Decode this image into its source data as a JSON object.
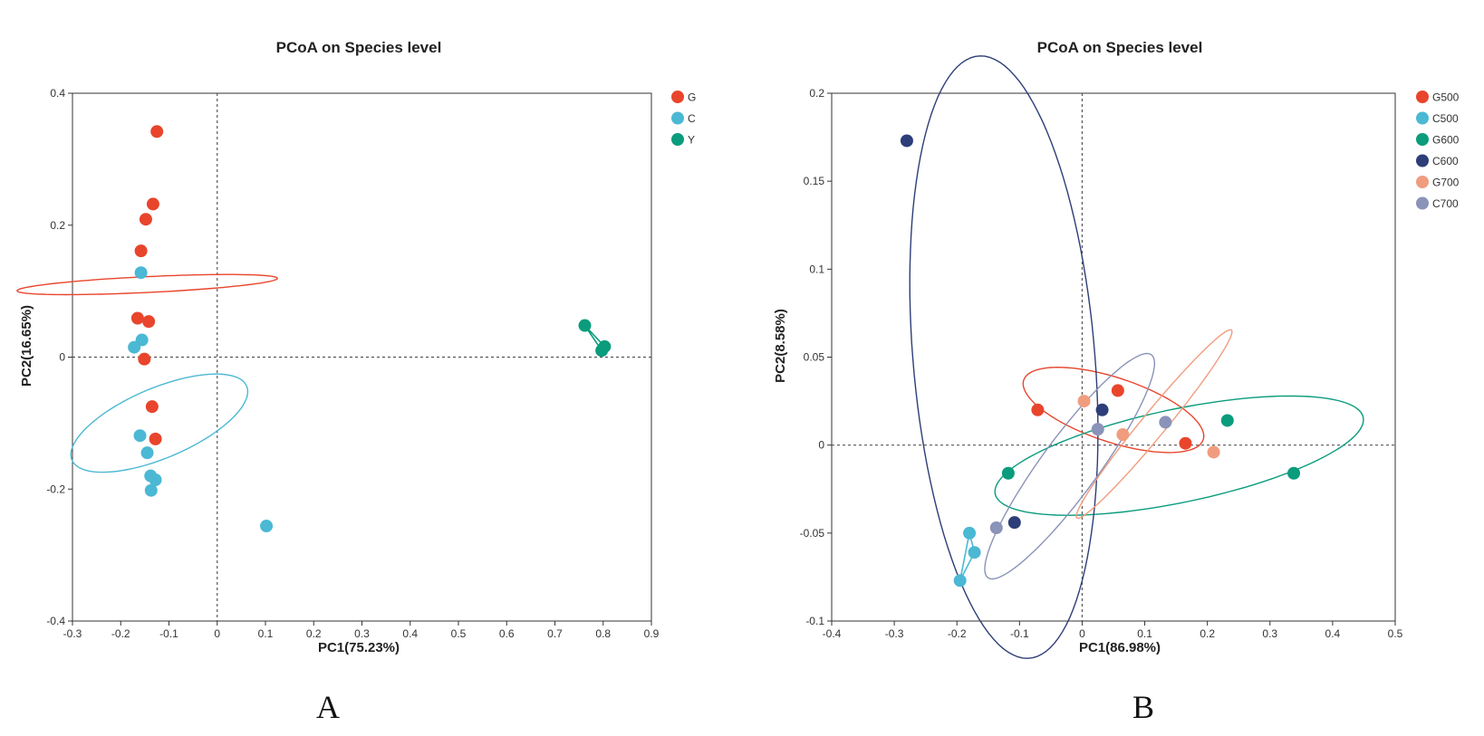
{
  "chart_data": [
    {
      "type": "scatter",
      "panel_label": "A",
      "title": "PCoA on Species level",
      "xlabel": "PC1(75.23%)",
      "ylabel": "PC2(16.65%)",
      "xlim": [
        -0.3,
        0.9
      ],
      "ylim": [
        -0.4,
        0.4
      ],
      "xticks": [
        "-0.3",
        "-0.2",
        "-0.1",
        "0",
        "0.1",
        "0.2",
        "0.3",
        "0.4",
        "0.5",
        "0.6",
        "0.7",
        "0.8",
        "0.9"
      ],
      "yticks": [
        "-0.4",
        "-0.2",
        "0",
        "0.2",
        "0.4"
      ],
      "grid": false,
      "reference_lines": {
        "x": 0,
        "y": 0
      },
      "legend_position": "top-right",
      "series": [
        {
          "name": "G",
          "color": "#e8452c",
          "points": [
            [
              -0.125,
              0.342
            ],
            [
              -0.133,
              0.232
            ],
            [
              -0.148,
              0.209
            ],
            [
              -0.158,
              0.161
            ],
            [
              -0.165,
              0.059
            ],
            [
              -0.142,
              0.054
            ],
            [
              -0.151,
              -0.003
            ],
            [
              -0.135,
              -0.075
            ],
            [
              -0.128,
              -0.124
            ]
          ],
          "ellipse": {
            "cx": -0.145,
            "cy": 0.11,
            "rx": 0.012,
            "ry": 0.27,
            "angle": -88
          }
        },
        {
          "name": "C",
          "color": "#4bb8d4",
          "points": [
            [
              -0.158,
              0.128
            ],
            [
              -0.156,
              0.026
            ],
            [
              -0.172,
              0.015
            ],
            [
              -0.16,
              -0.119
            ],
            [
              -0.145,
              -0.145
            ],
            [
              -0.138,
              -0.18
            ],
            [
              -0.128,
              -0.186
            ],
            [
              -0.137,
              -0.202
            ],
            [
              0.102,
              -0.256
            ]
          ],
          "ellipse": {
            "cx": -0.12,
            "cy": -0.1,
            "rx": 0.055,
            "ry": 0.19,
            "angle": -74
          }
        },
        {
          "name": "Y",
          "color": "#0a9c7c",
          "points": [
            [
              0.762,
              0.048
            ],
            [
              0.803,
              0.016
            ],
            [
              0.797,
              0.01
            ]
          ],
          "hull": true
        }
      ]
    },
    {
      "type": "scatter",
      "panel_label": "B",
      "title": "PCoA on Species level",
      "xlabel": "PC1(86.98%)",
      "ylabel": "PC2(8.58%)",
      "xlim": [
        -0.4,
        0.5
      ],
      "ylim": [
        -0.1,
        0.2
      ],
      "xticks": [
        "-0.4",
        "-0.3",
        "-0.2",
        "-0.1",
        "0",
        "0.1",
        "0.2",
        "0.3",
        "0.4",
        "0.5"
      ],
      "yticks": [
        "-0.1",
        "-0.05",
        "0",
        "0.05",
        "0.1",
        "0.15",
        "0.2"
      ],
      "grid": false,
      "reference_lines": {
        "x": 0,
        "y": 0
      },
      "legend_position": "top-right",
      "series": [
        {
          "name": "G500",
          "color": "#e8452c",
          "points": [
            [
              0.057,
              0.031
            ],
            [
              -0.071,
              0.02
            ],
            [
              0.165,
              0.001
            ]
          ],
          "ellipse": {
            "cx": 0.05,
            "cy": 0.02,
            "rx": 0.145,
            "ry": 0.019,
            "angle": -6
          }
        },
        {
          "name": "C500",
          "color": "#4bb8d4",
          "points": [
            [
              -0.18,
              -0.05
            ],
            [
              -0.172,
              -0.061
            ],
            [
              -0.195,
              -0.077
            ]
          ],
          "hull": true
        },
        {
          "name": "G600",
          "color": "#0a9c7c",
          "points": [
            [
              0.232,
              0.014
            ],
            [
              -0.118,
              -0.016
            ],
            [
              0.338,
              -0.016
            ]
          ],
          "ellipse": {
            "cx": 0.155,
            "cy": -0.006,
            "rx": 0.295,
            "ry": 0.027,
            "angle": 4
          }
        },
        {
          "name": "C600",
          "color": "#2d3e78",
          "points": [
            [
              -0.28,
              0.173
            ],
            [
              0.032,
              0.02
            ],
            [
              -0.108,
              -0.044
            ]
          ],
          "ellipse": {
            "cx": -0.125,
            "cy": 0.05,
            "rx": 0.182,
            "ry": 0.137,
            "angle": -59
          }
        },
        {
          "name": "G700",
          "color": "#f09d7f",
          "points": [
            [
              0.003,
              0.025
            ],
            [
              0.065,
              0.006
            ],
            [
              0.21,
              -0.004
            ]
          ],
          "ellipse": {
            "cx": 0.115,
            "cy": 0.012,
            "rx": 0.135,
            "ry": 0.01,
            "angle": 23
          }
        },
        {
          "name": "C700",
          "color": "#8a93b8",
          "points": [
            [
              0.133,
              0.013
            ],
            [
              0.025,
              0.009
            ],
            [
              -0.137,
              -0.047
            ]
          ],
          "ellipse": {
            "cx": -0.02,
            "cy": -0.012,
            "rx": 0.148,
            "ry": 0.024,
            "angle": 24
          }
        }
      ]
    }
  ]
}
